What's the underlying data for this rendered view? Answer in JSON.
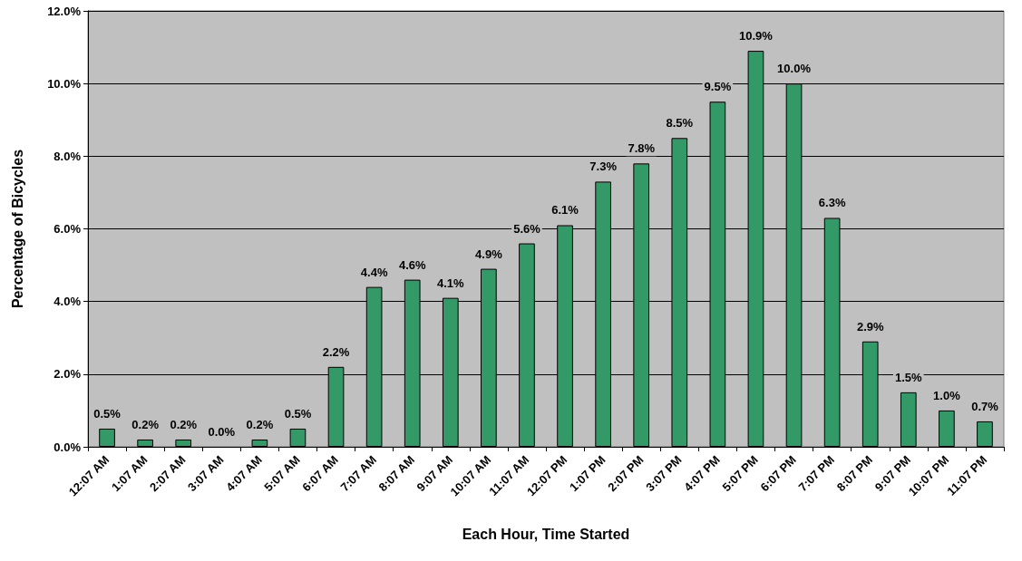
{
  "chart_data": {
    "type": "bar",
    "xlabel": "Each Hour, Time Started",
    "ylabel": "Percentage of Bicycles",
    "categories": [
      "12:07 AM",
      "1:07 AM",
      "2:07 AM",
      "3:07 AM",
      "4:07 AM",
      "5:07 AM",
      "6:07 AM",
      "7:07 AM",
      "8:07 AM",
      "9:07 AM",
      "10:07 AM",
      "11:07 AM",
      "12:07 PM",
      "1:07 PM",
      "2:07 PM",
      "3:07 PM",
      "4:07 PM",
      "5:07 PM",
      "6:07 PM",
      "7:07 PM",
      "8:07 PM",
      "9:07 PM",
      "10:07 PM",
      "11:07 PM"
    ],
    "values": [
      0.5,
      0.2,
      0.2,
      0.0,
      0.2,
      0.5,
      2.2,
      4.4,
      4.6,
      4.1,
      4.9,
      5.6,
      6.1,
      7.3,
      7.8,
      8.5,
      9.5,
      10.9,
      10.0,
      6.3,
      2.9,
      1.5,
      1.0,
      0.7
    ],
    "value_labels": [
      "0.5%",
      "0.2%",
      "0.2%",
      "0.0%",
      "0.2%",
      "0.5%",
      "2.2%",
      "4.4%",
      "4.6%",
      "4.1%",
      "4.9%",
      "5.6%",
      "6.1%",
      "7.3%",
      "7.8%",
      "8.5%",
      "9.5%",
      "10.9%",
      "10.0%",
      "6.3%",
      "2.9%",
      "1.5%",
      "1.0%",
      "0.7%"
    ],
    "color": "#339966",
    "ylim": [
      0,
      12
    ],
    "yticks": [
      {
        "value": 0,
        "label": "0.0%"
      },
      {
        "value": 2,
        "label": "2.0%"
      },
      {
        "value": 4,
        "label": "4.0%"
      },
      {
        "value": 6,
        "label": "6.0%"
      },
      {
        "value": 8,
        "label": "8.0%"
      },
      {
        "value": 10,
        "label": "10.0%"
      },
      {
        "value": 12,
        "label": "12.0%"
      }
    ],
    "grid": "y"
  }
}
